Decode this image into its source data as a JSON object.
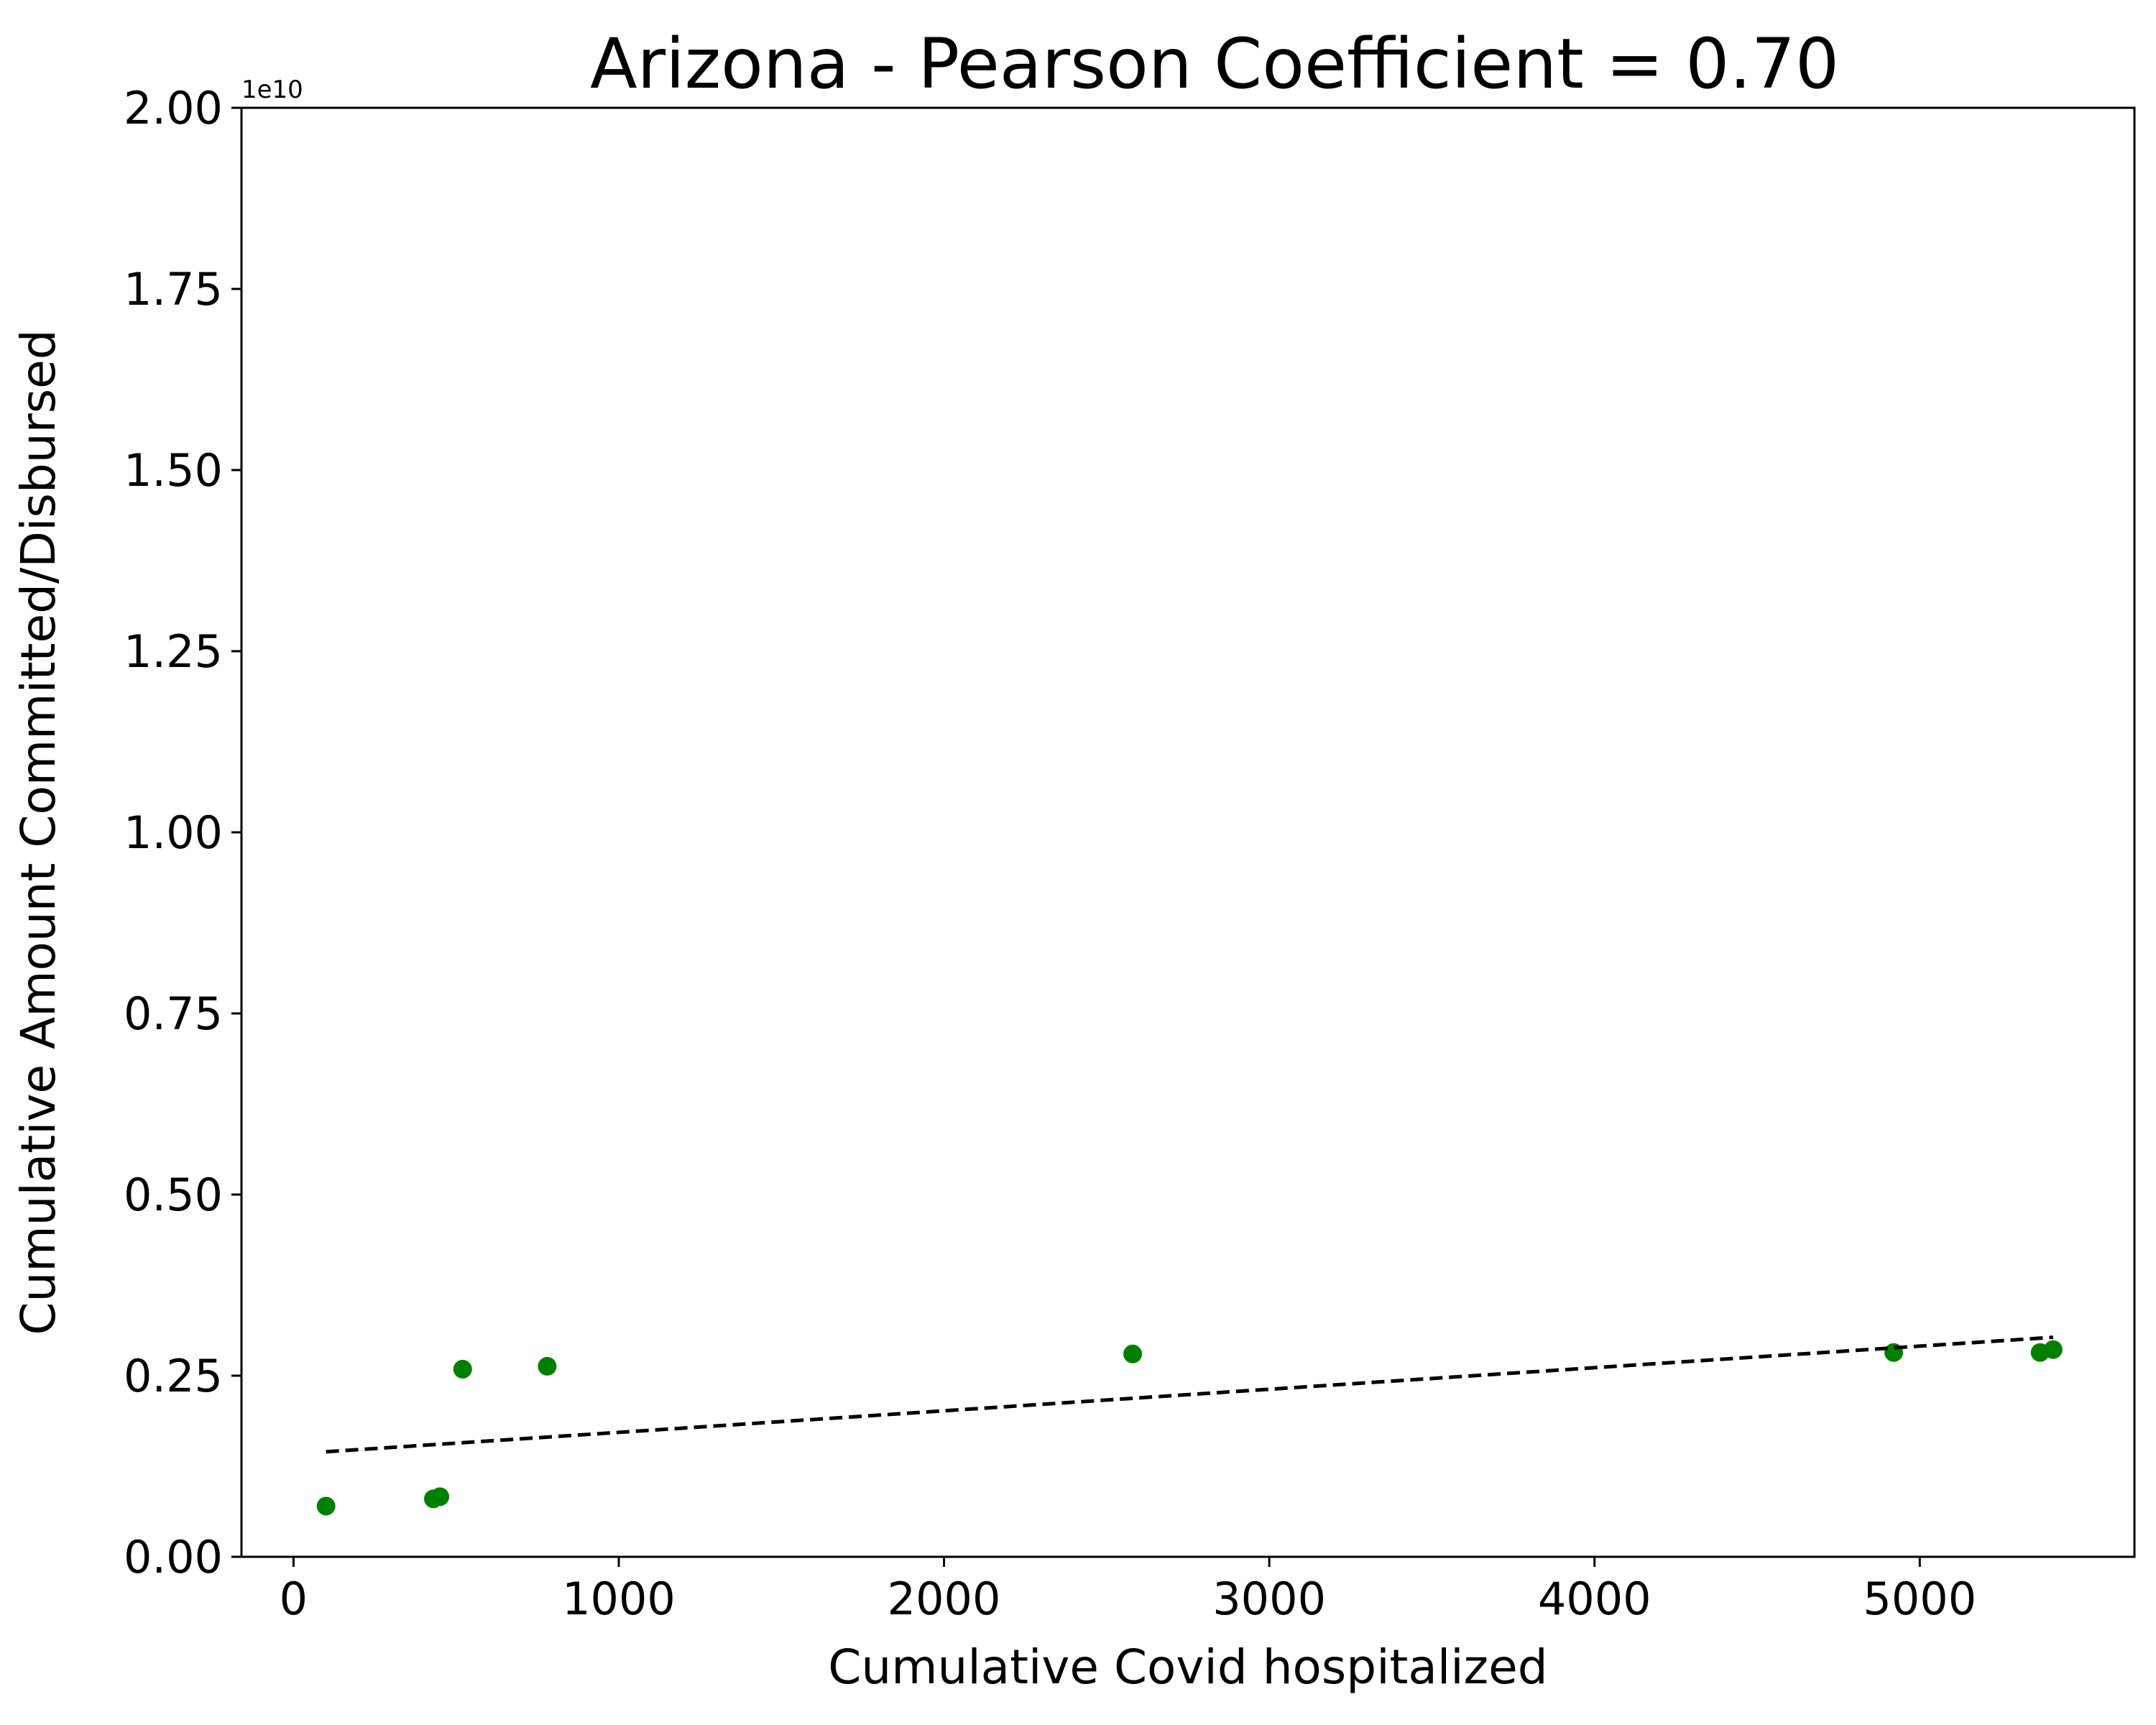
{
  "chart_data": {
    "type": "scatter",
    "title": "Arizona - Pearson Coefficient = 0.70",
    "xlabel": "Cumulative Covid hospitalized",
    "ylabel": "Cumulative Amount Committed/Disbursed",
    "y_offset_label": "1e10",
    "xlim": [
      -160,
      5660
    ],
    "ylim": [
      0,
      20000000000
    ],
    "x_ticks": [
      0,
      1000,
      2000,
      3000,
      4000,
      5000
    ],
    "x_tick_labels": [
      "0",
      "1000",
      "2000",
      "3000",
      "4000",
      "5000"
    ],
    "y_ticks": [
      0,
      2500000000,
      5000000000,
      7500000000,
      10000000000,
      12500000000,
      15000000000,
      17500000000,
      20000000000
    ],
    "y_tick_labels": [
      "0.00",
      "0.25",
      "0.50",
      "0.75",
      "1.00",
      "1.25",
      "1.50",
      "1.75",
      "2.00"
    ],
    "grid": false,
    "point_color": "#008000",
    "trend_color": "#000000",
    "points": {
      "x": [
        100,
        430,
        450,
        520,
        780,
        2580,
        4920,
        5370,
        5410
      ],
      "y": [
        700000000,
        800000000,
        830000000,
        2590000000,
        2630000000,
        2800000000,
        2820000000,
        2820000000,
        2860000000
      ]
    },
    "trend_line": {
      "x": [
        100,
        5410
      ],
      "y": [
        1450000000,
        3030000000
      ]
    }
  }
}
